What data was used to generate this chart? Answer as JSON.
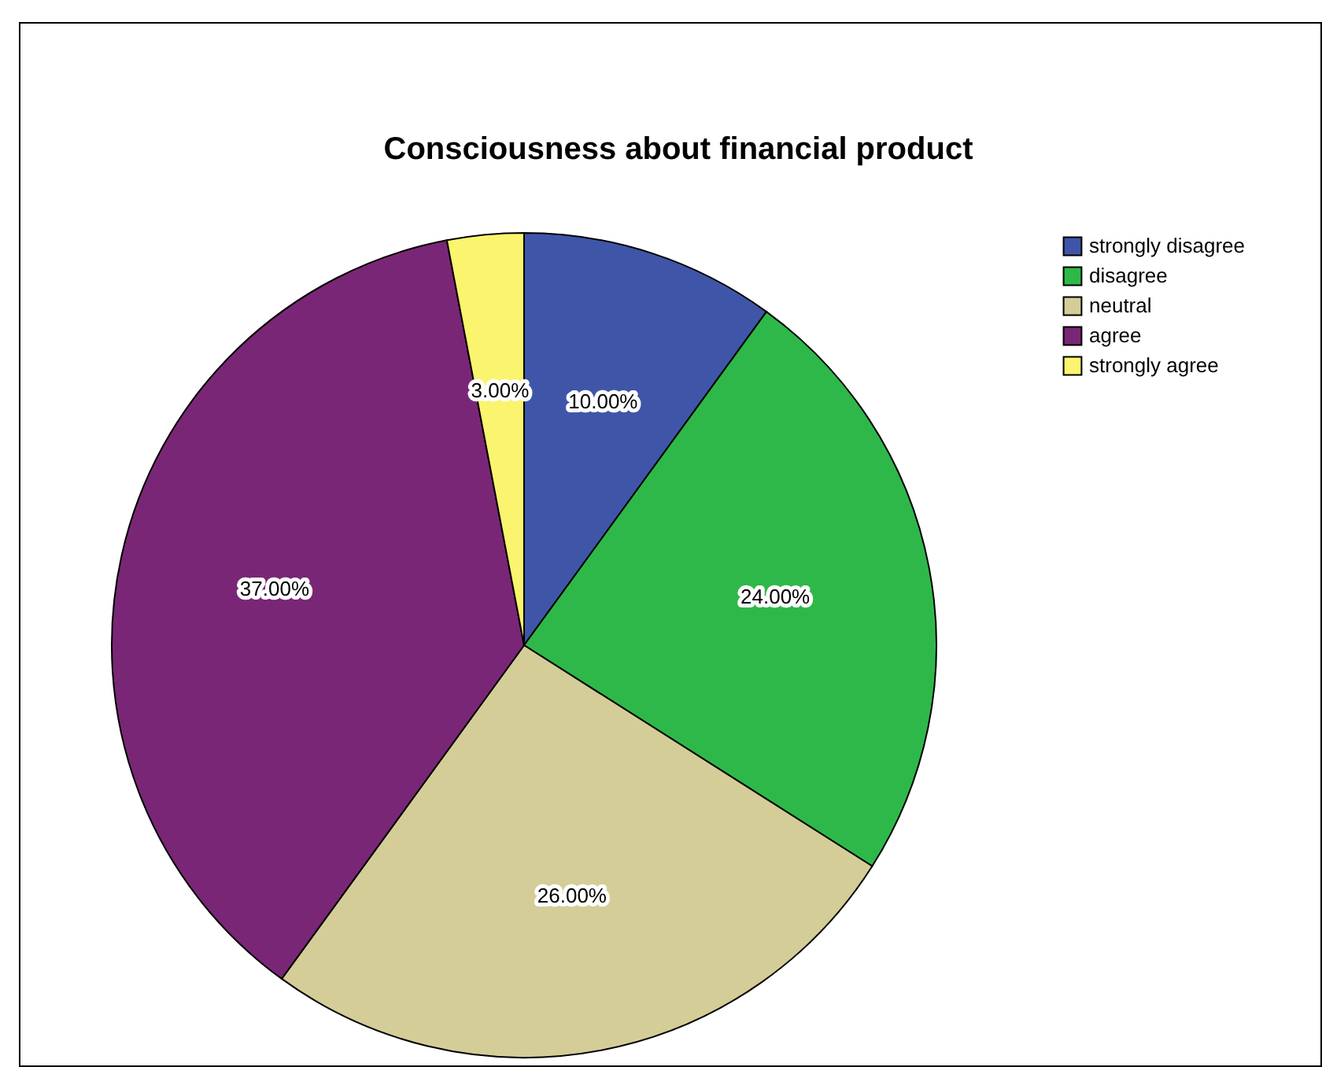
{
  "chart_data": {
    "type": "pie",
    "title": "Consciousness about financial product",
    "categories": [
      "strongly disagree",
      "disagree",
      "neutral",
      "agree",
      "strongly agree"
    ],
    "values": [
      10,
      24,
      26,
      37,
      3
    ],
    "colors": [
      "#3f56a8",
      "#2fb84a",
      "#d4cd98",
      "#7a2676",
      "#fbf46e"
    ],
    "value_labels": [
      "10.00%",
      "24.00%",
      "26.00%",
      "37.00%",
      "3.00%"
    ],
    "legend": "top right"
  }
}
